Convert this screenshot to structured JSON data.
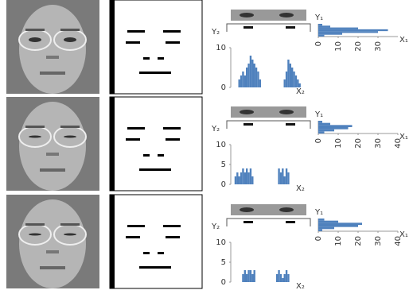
{
  "rows": [
    {
      "v_projection": {
        "y_label": "Y₂",
        "x_label": "X₂",
        "ylim": [
          0,
          10
        ],
        "yticks": [
          0,
          10
        ],
        "values": [
          0,
          0,
          0,
          0,
          2,
          3,
          4,
          3,
          5,
          6,
          8,
          7,
          6,
          5,
          4,
          2,
          0,
          0,
          0,
          0,
          0,
          0,
          0,
          0,
          0,
          0,
          0,
          0,
          2,
          4,
          7,
          6,
          5,
          4,
          3,
          2,
          1,
          0,
          0,
          0
        ]
      },
      "h_projection": {
        "y_label": "Y₁",
        "x_label": "X₁",
        "xlim": [
          0,
          40
        ],
        "xticks": [
          0,
          10,
          20,
          30
        ],
        "values": [
          2,
          6,
          20,
          35,
          30,
          12,
          3
        ]
      }
    },
    {
      "v_projection": {
        "y_label": "Y₂",
        "x_label": "X₂",
        "ylim": [
          0,
          10
        ],
        "yticks": [
          0,
          5,
          10
        ],
        "values": [
          0,
          0,
          2,
          3,
          2,
          3,
          4,
          3,
          4,
          3,
          4,
          2,
          0,
          0,
          0,
          0,
          0,
          0,
          0,
          0,
          0,
          0,
          0,
          0,
          0,
          4,
          3,
          4,
          2,
          4,
          3,
          0,
          0,
          0,
          0,
          0,
          0,
          0,
          0,
          0
        ]
      },
      "h_projection": {
        "y_label": "Y₁",
        "x_label": "X₁",
        "xlim": [
          0,
          40
        ],
        "xticks": [
          0,
          10,
          20,
          30,
          40
        ],
        "values": [
          2,
          6,
          17,
          15,
          8,
          3
        ]
      }
    },
    {
      "v_projection": {
        "y_label": "Y₂",
        "x_label": "X₂",
        "ylim": [
          0,
          10
        ],
        "yticks": [
          0,
          5,
          10
        ],
        "values": [
          0,
          0,
          0,
          0,
          0,
          0,
          2,
          3,
          2,
          3,
          3,
          2,
          3,
          0,
          0,
          0,
          0,
          0,
          0,
          0,
          0,
          0,
          0,
          0,
          2,
          3,
          2,
          1,
          2,
          3,
          2,
          0,
          0,
          0,
          0,
          0,
          0,
          0,
          0,
          0
        ]
      },
      "h_projection": {
        "y_label": "Y₁",
        "x_label": "X₁",
        "xlim": [
          0,
          40
        ],
        "xticks": [
          0,
          10,
          20,
          30,
          40
        ],
        "values": [
          3,
          10,
          22,
          20,
          8,
          2
        ]
      }
    }
  ]
}
